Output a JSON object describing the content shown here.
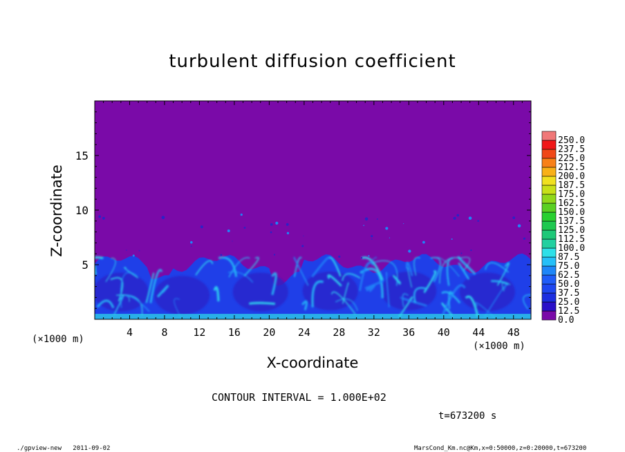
{
  "title": "turbulent diffusion coefficient",
  "chart_data": {
    "type": "heatmap",
    "title": "turbulent diffusion coefficient",
    "xlabel": "X-coordinate",
    "ylabel": "Z-coordinate",
    "x_unit": "(×1000 m)",
    "xlim": [
      0,
      50
    ],
    "ylim": [
      0,
      20
    ],
    "x_ticks": [
      4,
      8,
      12,
      16,
      20,
      24,
      28,
      32,
      36,
      40,
      44,
      48
    ],
    "y_ticks": [
      5,
      10,
      15
    ],
    "colorbar": {
      "levels": [
        "0.0",
        "12.5",
        "25.0",
        "37.5",
        "50.0",
        "62.5",
        "75.0",
        "87.5",
        "100.0",
        "112.5",
        "125.0",
        "137.5",
        "150.0",
        "162.5",
        "175.0",
        "187.5",
        "200.0",
        "212.5",
        "225.0",
        "237.5",
        "250.0"
      ],
      "colors": [
        "#7a0aa8",
        "#2a10c8",
        "#1b2ee0",
        "#1d46f0",
        "#1f5cf8",
        "#1e86f8",
        "#25c0f8",
        "#2ee0e8",
        "#22d0a0",
        "#1ec878",
        "#1ec850",
        "#28d030",
        "#5ad022",
        "#90d81a",
        "#c8e018",
        "#f0e020",
        "#f8b018",
        "#f88018",
        "#f04818",
        "#f01818",
        "#f07878"
      ]
    },
    "boundary_layer_top_approx": 5.7,
    "background_value_approx": 0.0
  },
  "contour_interval": "CONTOUR INTERVAL = 1.000E+02",
  "time_label": "t=673200 s",
  "footer_left": "./gpview-new   2011-09-02",
  "footer_right": "MarsCond_Km.nc@Km,x=0:50000,z=0:20000,t=673200"
}
